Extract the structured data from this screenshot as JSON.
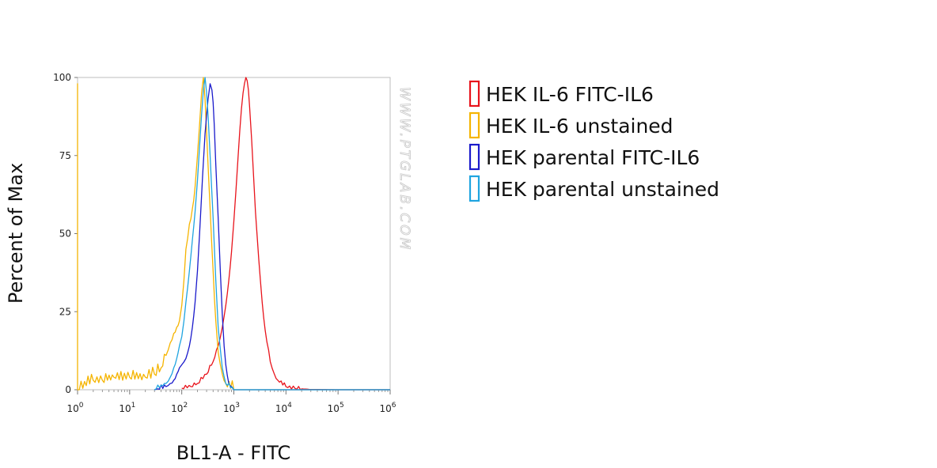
{
  "chart_data": {
    "type": "line",
    "title": "",
    "xlabel": "BL1-A - FITC",
    "ylabel": "Percent of Max",
    "xscale": "log",
    "xlim": [
      1,
      1000000
    ],
    "ylim": [
      0,
      100
    ],
    "y_ticks": [
      "0",
      "25",
      "50",
      "75",
      "100"
    ],
    "x_ticks": [
      {
        "value": 1,
        "base": "10",
        "exp": "0"
      },
      {
        "value": 10,
        "base": "10",
        "exp": "1"
      },
      {
        "value": 100,
        "base": "10",
        "exp": "2"
      },
      {
        "value": 1000,
        "base": "10",
        "exp": "3"
      },
      {
        "value": 10000,
        "base": "10",
        "exp": "4"
      },
      {
        "value": 100000,
        "base": "10",
        "exp": "5"
      },
      {
        "value": 1000000,
        "base": "10",
        "exp": "6"
      }
    ],
    "grid": false,
    "legend_position": "right",
    "watermark": "WWW.PTGLAB.COM",
    "series": [
      {
        "name": "HEK IL-6 FITC-IL6",
        "color": "#e8131b",
        "x": [
          100,
          150,
          200,
          300,
          400,
          500,
          600,
          700,
          800,
          900,
          1000,
          1100,
          1200,
          1300,
          1400,
          1500,
          1600,
          1700,
          1800,
          1900,
          2000,
          2200,
          2400,
          2600,
          3000,
          3500,
          4000,
          5000,
          6000,
          7000,
          10000,
          15000,
          30000,
          100000,
          1000000
        ],
        "y": [
          0.5,
          1,
          2,
          5,
          9,
          14,
          20,
          27,
          35,
          44,
          54,
          64,
          74,
          83,
          90,
          95,
          98,
          100,
          99,
          96,
          91,
          80,
          68,
          57,
          42,
          28,
          19,
          9,
          5,
          3,
          1,
          0.4,
          0.1,
          0,
          0
        ]
      },
      {
        "name": "HEK IL-6 unstained",
        "color": "#f5b400",
        "x": [
          1,
          1,
          1,
          2,
          3,
          5,
          10,
          20,
          30,
          40,
          50,
          60,
          70,
          80,
          90,
          100,
          110,
          120,
          140,
          160,
          180,
          200,
          220,
          240,
          260,
          280,
          300,
          320,
          350,
          400,
          450,
          500,
          600,
          700,
          1000,
          1000000
        ],
        "y": [
          0,
          98,
          0,
          3,
          3,
          4,
          4,
          4,
          5,
          7,
          11,
          15,
          18,
          20,
          22,
          27,
          35,
          45,
          53,
          58,
          65,
          75,
          85,
          95,
          100,
          93,
          82,
          72,
          58,
          38,
          22,
          12,
          5,
          2,
          0,
          0
        ]
      },
      {
        "name": "HEK parental FITC-IL6",
        "color": "#1a1acb",
        "x": [
          30,
          50,
          60,
          70,
          80,
          90,
          100,
          120,
          140,
          160,
          180,
          200,
          220,
          250,
          280,
          300,
          320,
          350,
          380,
          400,
          420,
          450,
          500,
          550,
          600,
          650,
          700,
          800,
          900,
          1000,
          1000000
        ],
        "y": [
          0,
          1,
          2,
          3,
          5,
          7,
          8,
          10,
          14,
          20,
          28,
          38,
          50,
          68,
          82,
          88,
          93,
          98,
          96,
          92,
          85,
          72,
          55,
          38,
          24,
          14,
          8,
          2,
          1,
          0,
          0
        ]
      },
      {
        "name": "HEK parental unstained",
        "color": "#1fa4e0",
        "x": [
          30,
          50,
          60,
          70,
          80,
          90,
          100,
          110,
          120,
          140,
          160,
          180,
          200,
          220,
          240,
          260,
          280,
          300,
          320,
          350,
          400,
          450,
          500,
          600,
          700,
          1000,
          1000000
        ],
        "y": [
          0,
          2,
          4,
          7,
          10,
          14,
          17,
          22,
          28,
          38,
          48,
          57,
          67,
          78,
          88,
          96,
          100,
          95,
          88,
          75,
          55,
          35,
          20,
          7,
          2,
          0,
          0
        ]
      }
    ]
  }
}
